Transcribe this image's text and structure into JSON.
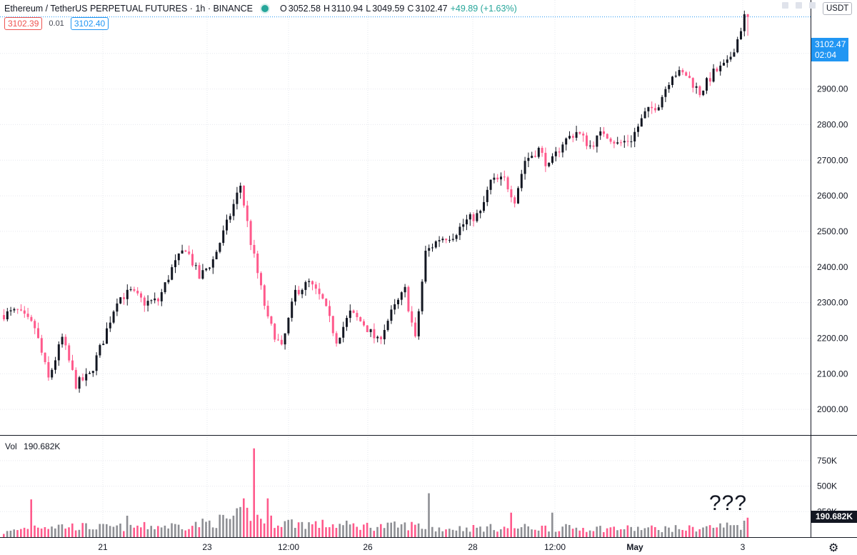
{
  "header": {
    "symbol": "Ethereum / TetherUS PERPETUAL FUTURES · 1h · BINANCE",
    "open_label": "O",
    "open": "3052.58",
    "high_label": "H",
    "high": "3110.94",
    "low_label": "L",
    "low": "3049.59",
    "close_label": "C",
    "close": "3102.47",
    "change": "+49.89 (+1.63%)",
    "bid": "3102.39",
    "spread": "0.01",
    "ask": "3102.40",
    "currency": "USDT"
  },
  "last_price": {
    "price": "3102.47",
    "countdown": "02:04"
  },
  "volume_panel": {
    "label": "Vol",
    "value": "190.682K",
    "badge": "190.682K"
  },
  "annotation": "???",
  "colors": {
    "up": "#131722",
    "down": "#ff5a8c",
    "accent": "#2196f3",
    "grid": "#e6e8ee"
  },
  "chart_data": {
    "type": "candlestick",
    "title": "Ethereum / TetherUS PERPETUAL FUTURES · 1h · BINANCE",
    "x_ticks": [
      "21",
      "23",
      "12:00",
      "26",
      "28",
      "12:00",
      "May",
      "3"
    ],
    "y_ticks": [
      "2000.00",
      "2100.00",
      "2200.00",
      "2300.00",
      "2400.00",
      "2500.00",
      "2600.00",
      "2700.00",
      "2800.00",
      "2900.00",
      "3000.00"
    ],
    "ylim": [
      1930,
      3150
    ],
    "volume_ticks": [
      "250K",
      "500K",
      "750K"
    ],
    "volume_ylim": [
      0,
      980000
    ],
    "grid": true,
    "price_path": [
      [
        0,
        2265
      ],
      [
        5,
        2275
      ],
      [
        10,
        2230
      ],
      [
        14,
        2085
      ],
      [
        18,
        2200
      ],
      [
        22,
        2070
      ],
      [
        26,
        2095
      ],
      [
        30,
        2195
      ],
      [
        34,
        2310
      ],
      [
        38,
        2330
      ],
      [
        42,
        2300
      ],
      [
        46,
        2305
      ],
      [
        50,
        2395
      ],
      [
        54,
        2455
      ],
      [
        58,
        2370
      ],
      [
        62,
        2420
      ],
      [
        66,
        2520
      ],
      [
        70,
        2630
      ],
      [
        73,
        2470
      ],
      [
        78,
        2250
      ],
      [
        82,
        2170
      ],
      [
        86,
        2330
      ],
      [
        90,
        2355
      ],
      [
        94,
        2305
      ],
      [
        98,
        2195
      ],
      [
        102,
        2270
      ],
      [
        106,
        2240
      ],
      [
        110,
        2190
      ],
      [
        114,
        2270
      ],
      [
        118,
        2335
      ],
      [
        121,
        2195
      ],
      [
        124,
        2440
      ],
      [
        128,
        2480
      ],
      [
        132,
        2490
      ],
      [
        136,
        2530
      ],
      [
        140,
        2550
      ],
      [
        143,
        2640
      ],
      [
        147,
        2645
      ],
      [
        150,
        2590
      ],
      [
        153,
        2700
      ],
      [
        157,
        2730
      ],
      [
        160,
        2680
      ],
      [
        164,
        2750
      ],
      [
        168,
        2780
      ],
      [
        172,
        2740
      ],
      [
        176,
        2780
      ],
      [
        180,
        2745
      ],
      [
        184,
        2760
      ],
      [
        188,
        2830
      ],
      [
        192,
        2860
      ],
      [
        196,
        2945
      ],
      [
        200,
        2940
      ],
      [
        204,
        2890
      ],
      [
        208,
        2945
      ],
      [
        212,
        2970
      ],
      [
        215,
        3040
      ],
      [
        217,
        3102.47
      ]
    ],
    "volume_profile": [
      [
        0,
        40000
      ],
      [
        10,
        110000
      ],
      [
        30,
        90000
      ],
      [
        55,
        110000
      ],
      [
        66,
        170000
      ],
      [
        72,
        230000
      ],
      [
        77,
        150000
      ],
      [
        90,
        120000
      ],
      [
        110,
        100000
      ],
      [
        120,
        110000
      ],
      [
        126,
        80000
      ],
      [
        150,
        90000
      ],
      [
        180,
        80000
      ],
      [
        200,
        80000
      ],
      [
        217,
        120000
      ]
    ],
    "volume_spikes": [
      [
        8,
        370000
      ],
      [
        36,
        210000
      ],
      [
        70,
        380000
      ],
      [
        73,
        870000
      ],
      [
        77,
        380000
      ],
      [
        124,
        430000
      ],
      [
        148,
        240000
      ],
      [
        160,
        240000
      ]
    ],
    "last_volume": 190682,
    "bar_count": 218
  }
}
